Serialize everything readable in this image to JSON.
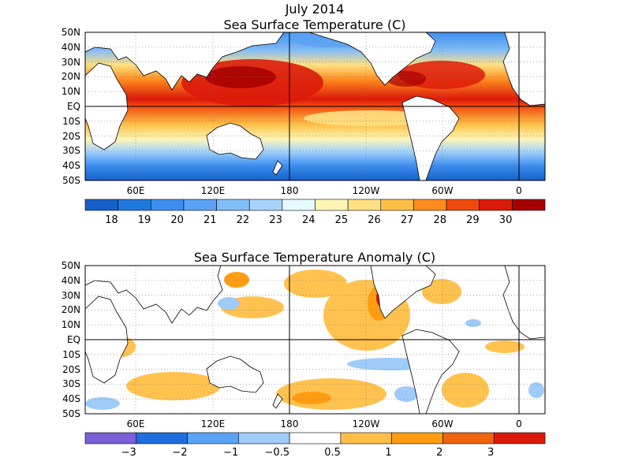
{
  "top_panel": {
    "title_line1": "July 2014",
    "title_line2": "Sea Surface Temperature (C)",
    "lat_labels": [
      "50N",
      "40N",
      "30N",
      "20N",
      "10N",
      "EQ",
      "10S",
      "20S",
      "30S",
      "40S",
      "50S"
    ],
    "lon_labels": [
      "60E",
      "120E",
      "180",
      "120W",
      "60W",
      "0"
    ],
    "colorbar": {
      "colors": [
        "#1560c8",
        "#1f78e0",
        "#3c8ef0",
        "#5aa2f5",
        "#82bdf8",
        "#a8d4fb",
        "#e6fbff",
        "#fff5b4",
        "#ffe082",
        "#ffbf46",
        "#ff8c1e",
        "#f04a0e",
        "#dc1a0a",
        "#a60000"
      ],
      "labels": [
        "18",
        "19",
        "20",
        "21",
        "22",
        "23",
        "24",
        "25",
        "26",
        "27",
        "28",
        "29",
        "30"
      ]
    }
  },
  "bottom_panel": {
    "title": "Sea Surface Temperature Anomaly (C)",
    "lat_labels": [
      "50N",
      "40N",
      "30N",
      "20N",
      "10N",
      "EQ",
      "10S",
      "20S",
      "30S",
      "40S",
      "50S"
    ],
    "lon_labels": [
      "60E",
      "120E",
      "180",
      "120W",
      "60W",
      "0"
    ],
    "colorbar": {
      "colors": [
        "#7a5fd6",
        "#1f6fe0",
        "#5aa2f5",
        "#9fcbf9",
        "#ffffff",
        "#ffbf46",
        "#ff9c12",
        "#f0640e",
        "#dc1a0a"
      ],
      "labels": [
        "−3",
        "−2",
        "−1",
        "−0.5",
        "0.5",
        "1",
        "2",
        "3"
      ]
    }
  }
}
